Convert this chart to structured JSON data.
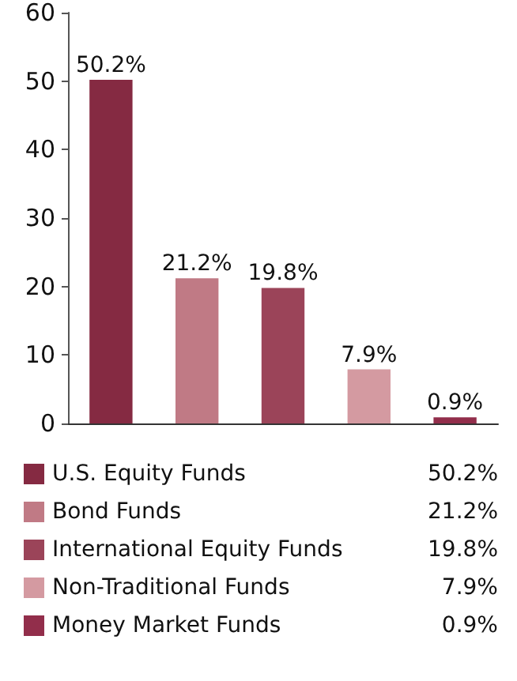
{
  "chart_data": {
    "type": "bar",
    "categories": [
      null,
      null,
      null,
      null,
      null
    ],
    "series": [
      {
        "name": "U.S. Equity Funds",
        "color": "#852a42",
        "values": [
          50.2,
          null,
          null,
          null,
          null
        ],
        "value_labels": [
          "50.2%",
          null,
          null,
          null,
          null
        ]
      },
      {
        "name": "Bond Funds",
        "color": "#c07a85",
        "values": [
          null,
          21.2,
          null,
          null,
          null
        ],
        "value_labels": [
          null,
          "21.2%",
          null,
          null,
          null
        ]
      },
      {
        "name": "International Equity Funds",
        "color": "#9b4459",
        "values": [
          null,
          null,
          19.8,
          null,
          null
        ],
        "value_labels": [
          null,
          null,
          "19.8%",
          null,
          null
        ]
      },
      {
        "name": "Non-Traditional Funds",
        "color": "#d49aa1",
        "values": [
          null,
          null,
          null,
          7.9,
          null
        ],
        "value_labels": [
          null,
          null,
          null,
          "7.9%",
          null
        ]
      },
      {
        "name": "Money Market Funds",
        "color": "#922e4b",
        "values": [
          null,
          null,
          null,
          null,
          0.9
        ],
        "value_labels": [
          null,
          null,
          null,
          null,
          "0.9%"
        ]
      }
    ],
    "ylim": [
      0,
      60
    ],
    "yticks": [
      0,
      10,
      20,
      30,
      40,
      50,
      60
    ],
    "legend": "bottom",
    "tick_labels": "y"
  }
}
